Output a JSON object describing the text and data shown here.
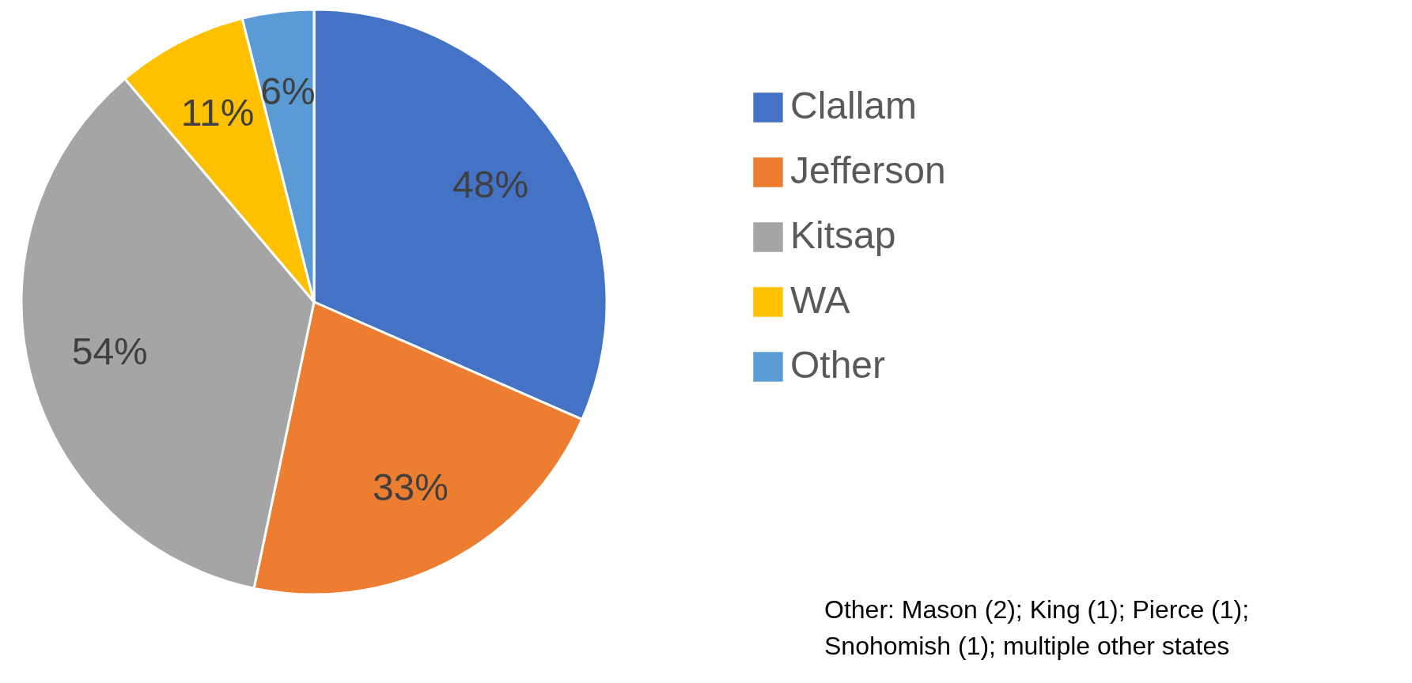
{
  "chart_data": {
    "type": "pie",
    "categories": [
      "Clallam",
      "Jefferson",
      "Kitsap",
      "WA",
      "Other"
    ],
    "values": [
      48,
      33,
      54,
      11,
      6
    ],
    "colors": [
      "#4472c4",
      "#ed7d31",
      "#a5a5a5",
      "#ffc000",
      "#5b9bd5"
    ],
    "value_labels": [
      "48%",
      "33%",
      "54%",
      "11%",
      "6%"
    ],
    "legend": "right",
    "annotations": [
      "Other: Mason (2); King (1); Pierce (1);\nSnohomish (1); multiple other states"
    ]
  }
}
